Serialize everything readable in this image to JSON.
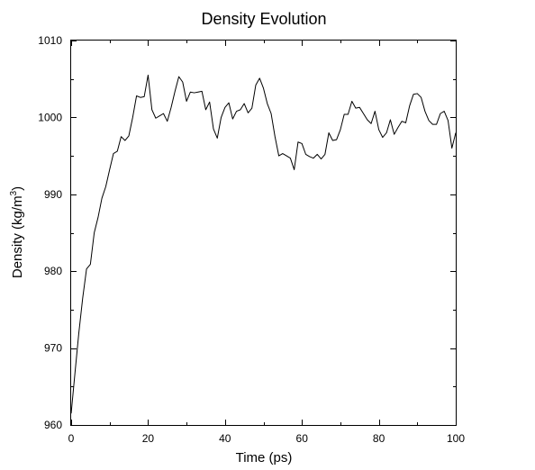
{
  "chart_data": {
    "type": "line",
    "title": "Density Evolution",
    "xlabel": "Time (ps)",
    "ylabel_text": "Density (kg/m",
    "ylabel_sup": "3",
    "ylabel_close": ")",
    "xlim": [
      0,
      100
    ],
    "ylim": [
      960,
      1010
    ],
    "xticks": [
      0,
      20,
      40,
      60,
      80,
      100
    ],
    "yticks": [
      960,
      970,
      980,
      990,
      1000,
      1010
    ],
    "xtick_labels": [
      "0",
      "20",
      "40",
      "60",
      "80",
      "100"
    ],
    "ytick_labels": [
      "960",
      "970",
      "980",
      "990",
      "1000",
      "1010"
    ],
    "x_minor_step": 10,
    "y_minor_step": 5,
    "grid": false,
    "legend": "none",
    "series": [
      {
        "color": "#000000",
        "x": [
          0,
          1,
          2,
          3,
          4,
          5,
          6,
          7,
          8,
          9,
          10,
          11,
          12,
          13,
          14,
          15,
          16,
          17,
          18,
          19,
          20,
          21,
          22,
          23,
          24,
          25,
          26,
          27,
          28,
          29,
          30,
          31,
          32,
          33,
          34,
          35,
          36,
          37,
          38,
          39,
          40,
          41,
          42,
          43,
          44,
          45,
          46,
          47,
          48,
          49,
          50,
          51,
          52,
          53,
          54,
          55,
          56,
          57,
          58,
          59,
          60,
          61,
          62,
          63,
          64,
          65,
          66,
          67,
          68,
          69,
          70,
          71,
          72,
          73,
          74,
          75,
          76,
          77,
          78,
          79,
          80,
          81,
          82,
          83,
          84,
          85,
          86,
          87,
          88,
          89,
          90,
          91,
          92,
          93,
          94,
          95,
          96,
          97,
          98,
          99,
          100
        ],
        "y": [
          961.5,
          966.8,
          972.0,
          976.5,
          980.3,
          980.9,
          985.0,
          987.0,
          989.5,
          991.0,
          993.2,
          995.3,
          995.6,
          997.5,
          997.0,
          997.6,
          1000.0,
          1002.8,
          1002.6,
          1002.7,
          1005.5,
          1001.0,
          999.9,
          1000.2,
          1000.5,
          999.5,
          1001.3,
          1003.4,
          1005.3,
          1004.6,
          1002.1,
          1003.3,
          1003.2,
          1003.3,
          1003.4,
          1001.0,
          1002.0,
          998.5,
          997.3,
          1000.0,
          1001.3,
          1001.9,
          999.8,
          1000.8,
          1001.0,
          1001.8,
          1000.6,
          1001.2,
          1004.2,
          1005.1,
          1003.8,
          1001.8,
          1000.5,
          997.5,
          995.0,
          995.3,
          995.0,
          994.7,
          993.2,
          996.8,
          996.6,
          995.2,
          994.9,
          994.7,
          995.2,
          994.6,
          995.2,
          998.0,
          997.0,
          997.1,
          998.4,
          1000.4,
          1000.4,
          1002.1,
          1001.2,
          1001.3,
          1000.5,
          999.7,
          999.2,
          1000.8,
          998.4,
          997.4,
          998.0,
          999.7,
          997.8,
          998.7,
          999.5,
          999.3,
          1001.5,
          1003.0,
          1003.1,
          1002.6,
          1000.8,
          999.6,
          999.1,
          999.1,
          1000.5,
          1000.8,
          999.6,
          996.0,
          998.0
        ]
      }
    ]
  }
}
